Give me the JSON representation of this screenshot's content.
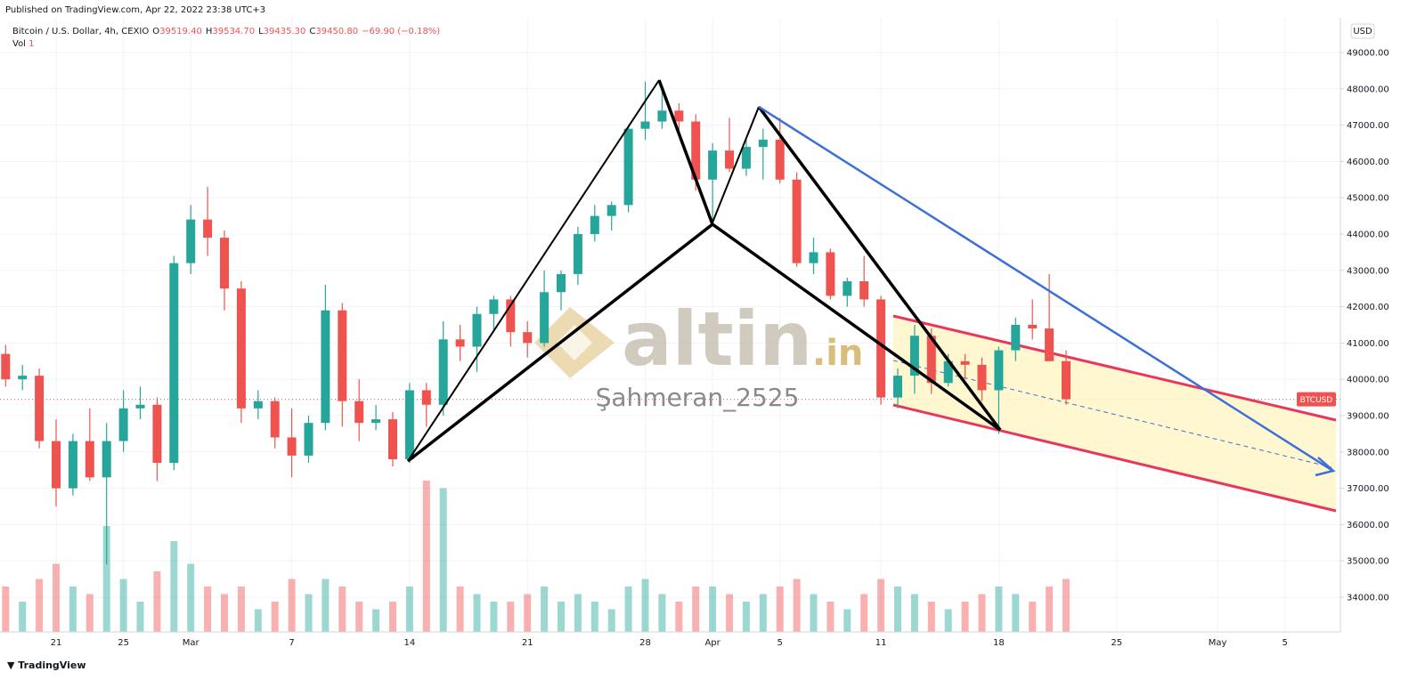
{
  "header": {
    "published": "Published on TradingView.com, Apr 22, 2022 23:38 UTC+3",
    "symbol": "Bitcoin / U.S. Dollar, 4h, CEXIO",
    "ohlc": [
      {
        "label": "O",
        "value": "39519.40"
      },
      {
        "label": "H",
        "value": "39534.70"
      },
      {
        "label": "L",
        "value": "39435.30"
      },
      {
        "label": "C",
        "value": "39450.80"
      }
    ],
    "change": "−69.90 (−0.18%)",
    "vol_label": "Vol",
    "vol_value": "1",
    "currency": "USD",
    "ticker": "BTCUSD",
    "footer": "TradingView",
    "watermark": "altin",
    "watermark_suffix": ".in",
    "author": "Şahmeran_2525"
  },
  "chart_data": {
    "type": "candlestick",
    "grid": true,
    "up_color": "#26a69a",
    "down_color": "#ef5350",
    "categories": [
      null,
      null,
      null,
      "21",
      null,
      null,
      null,
      "25",
      null,
      null,
      null,
      "Mar",
      null,
      null,
      null,
      null,
      null,
      "7",
      null,
      null,
      null,
      null,
      null,
      null,
      "14",
      null,
      null,
      null,
      null,
      null,
      null,
      "21",
      null,
      null,
      null,
      null,
      null,
      null,
      "28",
      null,
      null,
      null,
      "Apr",
      null,
      null,
      null,
      "5",
      null,
      null,
      null,
      null,
      null,
      "11",
      null,
      null,
      null,
      null,
      null,
      null,
      "18",
      null,
      null,
      null,
      null,
      null,
      null,
      "25",
      null,
      null,
      null,
      null,
      null,
      "May",
      null,
      null,
      null,
      "5",
      null,
      null,
      null
    ],
    "open": [
      40700,
      40000,
      40100,
      38300,
      37000,
      38300,
      37300,
      38300,
      39200,
      39300,
      37700,
      43200,
      44400,
      43900,
      42500,
      39200,
      39400,
      38400,
      37900,
      38800,
      41900,
      39400,
      38800,
      38900,
      37800,
      39700,
      39300,
      41100,
      40900,
      41800,
      42200,
      41300,
      41000,
      42400,
      42900,
      44000,
      44500,
      44800,
      46900,
      47100,
      47400,
      47100,
      45500,
      46300,
      45800,
      46400,
      46600,
      45500,
      43200,
      43500,
      42300,
      42700,
      42200,
      39500,
      40100,
      41200,
      39900,
      40500,
      40400,
      39700,
      40800,
      41500,
      41400,
      40500,
      null,
      null,
      null,
      null,
      null,
      null,
      null,
      null,
      null,
      null,
      null,
      null,
      null,
      null,
      null,
      null
    ],
    "high": [
      40950,
      40400,
      40300,
      38900,
      38500,
      39200,
      38800,
      39700,
      39800,
      39500,
      43400,
      44800,
      45300,
      44100,
      42700,
      39700,
      39500,
      39200,
      39000,
      42600,
      42100,
      40000,
      39300,
      39100,
      39900,
      39900,
      41600,
      41500,
      42000,
      42300,
      42300,
      41600,
      43000,
      43000,
      44200,
      44800,
      44900,
      47000,
      48200,
      48100,
      47600,
      47300,
      46500,
      47200,
      46600,
      46900,
      47200,
      45700,
      43900,
      43600,
      42800,
      43400,
      42300,
      40300,
      41500,
      41400,
      40700,
      40700,
      40600,
      40900,
      41700,
      42200,
      42900,
      40800,
      null,
      null,
      null,
      null,
      null,
      null,
      null,
      null,
      null,
      null,
      null,
      null,
      null,
      null,
      null,
      null
    ],
    "low": [
      39800,
      39700,
      38100,
      36500,
      36800,
      37200,
      34900,
      38000,
      38900,
      37200,
      37500,
      42900,
      43400,
      41900,
      38800,
      38900,
      38100,
      37300,
      37700,
      38600,
      38700,
      38300,
      38600,
      37600,
      37700,
      38700,
      39000,
      40500,
      40200,
      41300,
      40900,
      40600,
      40900,
      41900,
      42600,
      43800,
      44100,
      44600,
      46600,
      46900,
      46800,
      45200,
      44300,
      45700,
      45600,
      45500,
      45400,
      43100,
      42900,
      42200,
      42000,
      42000,
      39300,
      39200,
      39600,
      39600,
      39800,
      40000,
      39400,
      38500,
      40500,
      41100,
      40500,
      39300,
      null,
      null,
      null,
      null,
      null,
      null,
      null,
      null,
      null,
      null,
      null,
      null,
      null,
      null,
      null,
      null
    ],
    "close": [
      40000,
      40100,
      38300,
      37000,
      38300,
      37300,
      38300,
      39200,
      39300,
      37700,
      43200,
      44400,
      43900,
      42500,
      39200,
      39400,
      38400,
      37900,
      38800,
      41900,
      39400,
      38800,
      38900,
      37800,
      39700,
      39300,
      41100,
      40900,
      41800,
      42200,
      41300,
      41000,
      42400,
      42900,
      44000,
      44500,
      44800,
      46900,
      47100,
      47400,
      47100,
      45500,
      46300,
      45800,
      46400,
      46600,
      45500,
      43200,
      43500,
      42300,
      42700,
      42200,
      39500,
      40100,
      41200,
      39900,
      40500,
      40400,
      39700,
      40800,
      41500,
      41400,
      40500,
      39450,
      null,
      null,
      null,
      null,
      null,
      null,
      null,
      null,
      null,
      null,
      null,
      null,
      null,
      null,
      null,
      null
    ],
    "volume": [
      30,
      20,
      35,
      45,
      30,
      25,
      70,
      35,
      20,
      40,
      60,
      45,
      30,
      25,
      30,
      15,
      20,
      35,
      25,
      35,
      30,
      20,
      15,
      20,
      30,
      100,
      95,
      30,
      25,
      20,
      20,
      25,
      30,
      20,
      25,
      20,
      15,
      30,
      35,
      25,
      20,
      30,
      30,
      25,
      20,
      25,
      30,
      35,
      25,
      20,
      15,
      25,
      35,
      30,
      25,
      20,
      15,
      20,
      25,
      30,
      25,
      20,
      30,
      35,
      null,
      null,
      null,
      null,
      null,
      null,
      null,
      null,
      null,
      null,
      null,
      null,
      null,
      null,
      null,
      null
    ],
    "ylim": [
      33044,
      49956
    ],
    "yticks": [
      {
        "value": 34000,
        "label": "34000.00"
      },
      {
        "value": 35000,
        "label": "35000.00"
      },
      {
        "value": 36000,
        "label": "36000.00"
      },
      {
        "value": 37000,
        "label": "37000.00"
      },
      {
        "value": 38000,
        "label": "38000.00"
      },
      {
        "value": 39000,
        "label": "39000.00"
      },
      {
        "value": 40000,
        "label": "40000.00"
      },
      {
        "value": 41000,
        "label": "41000.00"
      },
      {
        "value": 42000,
        "label": "42000.00"
      },
      {
        "value": 43000,
        "label": "43000.00"
      },
      {
        "value": 44000,
        "label": "44000.00"
      },
      {
        "value": 45000,
        "label": "45000.00"
      },
      {
        "value": 46000,
        "label": "46000.00"
      },
      {
        "value": 47000,
        "label": "47000.00"
      },
      {
        "value": 48000,
        "label": "48000.00"
      },
      {
        "value": 49000,
        "label": "49000.00"
      }
    ]
  }
}
